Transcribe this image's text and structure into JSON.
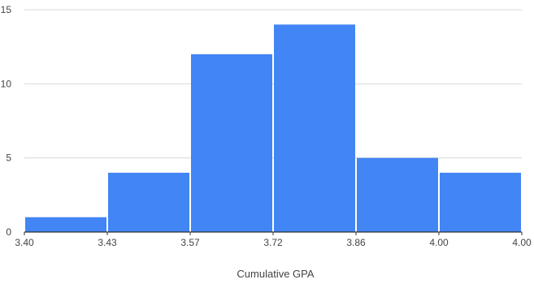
{
  "chart_data": {
    "type": "bar",
    "subtype": "histogram",
    "xlabel": "Cumulative GPA",
    "ylabel": "",
    "ylim": [
      0,
      15
    ],
    "yticks": [
      0,
      5,
      10,
      15
    ],
    "xtick_labels": [
      "3.40",
      "3.43",
      "3.57",
      "3.72",
      "3.86",
      "4.00",
      "4.00"
    ],
    "values": [
      1,
      4,
      12,
      14,
      5,
      4
    ],
    "grid": true,
    "legend": "none",
    "bar_color": "#4285f4",
    "grid_color": "#d9d9d9",
    "axis_color": "#333333",
    "text_color": "#444444"
  }
}
